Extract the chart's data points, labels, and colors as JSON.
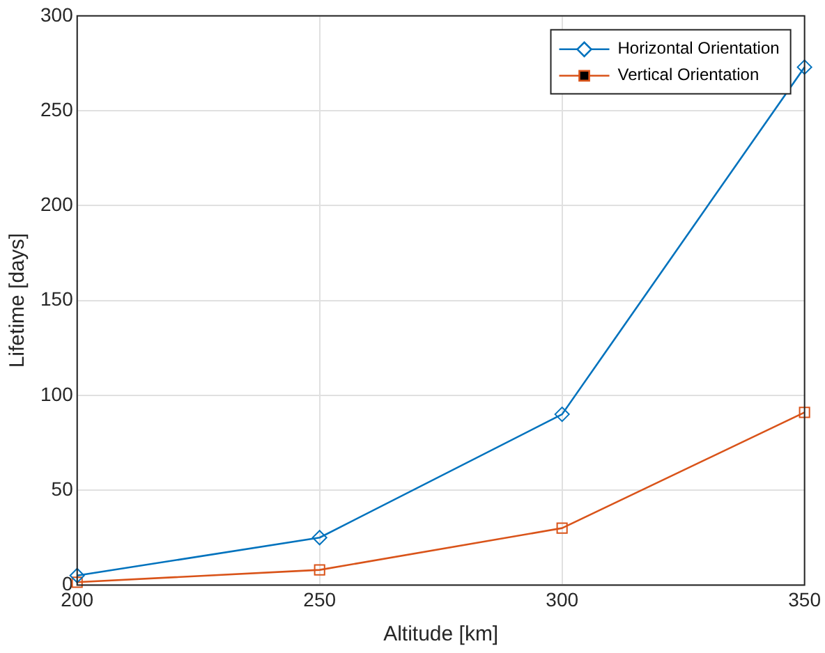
{
  "chart_data": {
    "type": "line",
    "xlabel": "Altitude [km]",
    "ylabel": "Lifetime [days]",
    "x": [
      200,
      250,
      300,
      350
    ],
    "series": [
      {
        "name": "Horizontal Orientation",
        "color": "#0072bd",
        "marker": "diamond",
        "values": [
          5,
          25,
          90,
          273
        ]
      },
      {
        "name": "Vertical Orientation",
        "color": "#d95319",
        "marker": "square",
        "values": [
          1.5,
          8,
          30,
          91
        ]
      }
    ],
    "xlim": [
      200,
      350
    ],
    "xticks": [
      200,
      250,
      300,
      350
    ],
    "ylim": [
      0,
      300
    ],
    "yticks": [
      0,
      50,
      100,
      150,
      200,
      250,
      300
    ],
    "grid": true,
    "legend": "top right",
    "line_style": "solid"
  }
}
